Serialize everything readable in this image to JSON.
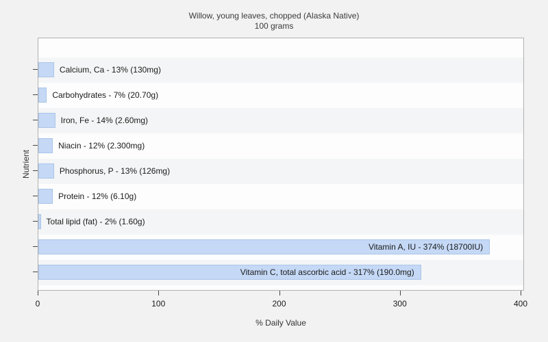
{
  "title": {
    "line1": "Willow, young leaves, chopped (Alaska Native)",
    "line2": "100 grams"
  },
  "axes": {
    "x_label": "% Daily Value",
    "y_label": "Nutrient"
  },
  "colors": {
    "page_background": "#f2f2f2",
    "plot_background": "#fdfdfd",
    "stripe": "#f4f5f6",
    "bar_fill": "#c5d9f6",
    "bar_border": "#a9c4e8"
  },
  "chart_data": {
    "type": "bar",
    "orientation": "horizontal",
    "title": "Willow, young leaves, chopped (Alaska Native)",
    "subtitle": "100 grams",
    "xlabel": "% Daily Value",
    "ylabel": "Nutrient",
    "xlim": [
      0,
      400
    ],
    "xticks": [
      0,
      100,
      200,
      300,
      400
    ],
    "grid": false,
    "legend": false,
    "categories": [
      "Calcium, Ca",
      "Carbohydrates",
      "Iron, Fe",
      "Niacin",
      "Phosphorus, P",
      "Protein",
      "Total lipid (fat)",
      "Vitamin A, IU",
      "Vitamin C, total ascorbic acid"
    ],
    "values": [
      13,
      7,
      14,
      12,
      13,
      12,
      2,
      374,
      317
    ],
    "amounts": [
      "130mg",
      "20.70g",
      "2.60mg",
      "2.300mg",
      "126mg",
      "6.10g",
      "1.60g",
      "18700IU",
      "190.0mg"
    ],
    "labels": [
      "Calcium, Ca - 13% (130mg)",
      "Carbohydrates - 7% (20.70g)",
      "Iron, Fe - 14% (2.60mg)",
      "Niacin - 12% (2.300mg)",
      "Phosphorus, P - 13% (126mg)",
      "Protein - 12% (6.10g)",
      "Total lipid (fat) - 2% (1.60g)",
      "Vitamin A, IU - 374% (18700IU)",
      "Vitamin C, total ascorbic acid - 317% (190.0mg)"
    ]
  }
}
